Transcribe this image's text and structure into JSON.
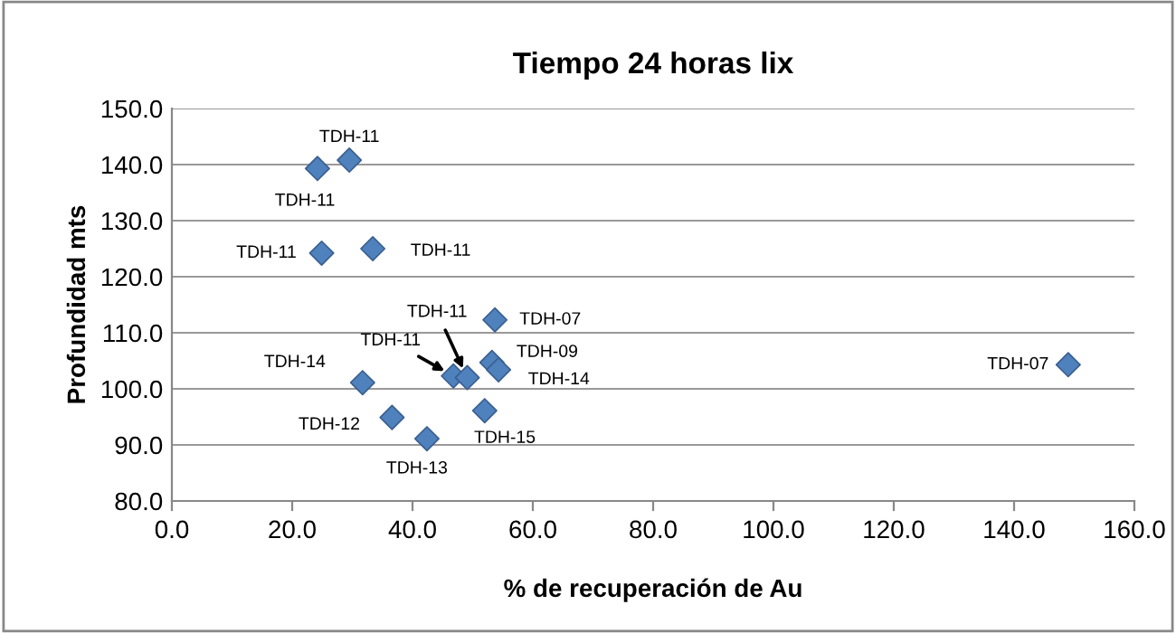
{
  "chart_data": {
    "type": "scatter",
    "title": "Tiempo 24 horas lix",
    "xlabel": "% de recuperación de Au",
    "ylabel": "Profundidad mts",
    "x": [
      24.2,
      29.5,
      24.9,
      33.4,
      53.7,
      53.2,
      54.3,
      46.8,
      49.1,
      31.7,
      36.6,
      52.0,
      42.4,
      149.0
    ],
    "values": [
      139.3,
      140.8,
      124.2,
      125.0,
      112.3,
      104.7,
      103.4,
      102.3,
      102.0,
      101.1,
      94.9,
      96.1,
      91.1,
      104.3
    ],
    "value_labels": [
      "TDH-11",
      "TDH-11",
      "TDH-11",
      "TDH-11",
      "TDH-07",
      "TDH-09",
      "TDH-14",
      "TDH-11",
      "TDH-11",
      "TDH-14",
      "TDH-12",
      "TDH-15",
      "TDH-13",
      "TDH-07"
    ],
    "color": "#4f81bd",
    "marker": "diamond",
    "grid": "y",
    "xlim": [
      0,
      160
    ],
    "xticks": [
      {
        "value": 0,
        "label": "0.0"
      },
      {
        "value": 20,
        "label": "20.0"
      },
      {
        "value": 40,
        "label": "40.0"
      },
      {
        "value": 60,
        "label": "60.0"
      },
      {
        "value": 80,
        "label": "80.0"
      },
      {
        "value": 100,
        "label": "100.0"
      },
      {
        "value": 120,
        "label": "120.0"
      },
      {
        "value": 140,
        "label": "140.0"
      },
      {
        "value": 160,
        "label": "160.0"
      }
    ],
    "ylim": [
      80,
      150
    ],
    "yticks": [
      {
        "value": 80,
        "label": "80.0"
      },
      {
        "value": 90,
        "label": "90.0"
      },
      {
        "value": 100,
        "label": "100.0"
      },
      {
        "value": 110,
        "label": "110.0"
      },
      {
        "value": 120,
        "label": "120.0"
      },
      {
        "value": 130,
        "label": "130.0"
      },
      {
        "value": 140,
        "label": "140.0"
      },
      {
        "value": 150,
        "label": "150.0"
      }
    ]
  }
}
